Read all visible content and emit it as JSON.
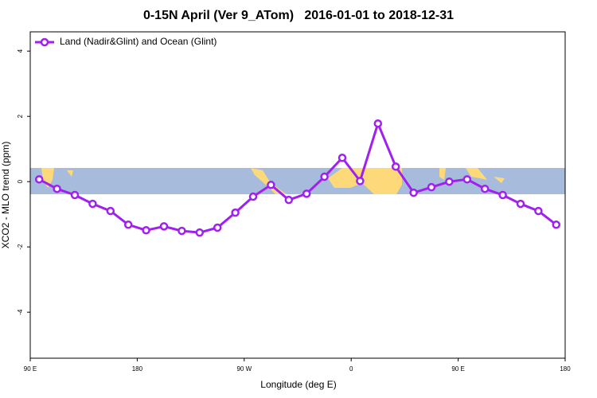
{
  "chart_data": {
    "type": "line",
    "title": "0-15N April (Ver 9_ATom)   2016-01-01 to 2018-12-31",
    "xlabel": "Longitude (deg E)",
    "ylabel": "XCO2 - MLO trend (ppm)",
    "x": [
      97.5,
      112.5,
      127.5,
      142.5,
      157.5,
      172.5,
      187.5,
      202.5,
      217.5,
      232.5,
      247.5,
      262.5,
      277.5,
      292.5,
      307.5,
      322.5,
      337.5,
      352.5,
      367.5,
      382.5,
      397.5,
      412.5,
      427.5,
      442.5,
      457.5,
      472.5,
      487.5,
      502.5,
      517.5,
      532.5
    ],
    "series": [
      {
        "name": "Land (Nadir&Glint) and Ocean (Glint)",
        "color": "#a020f0",
        "values": [
          0.07,
          -0.22,
          -0.41,
          -0.68,
          -0.9,
          -1.32,
          -1.49,
          -1.37,
          -1.51,
          -1.56,
          -1.41,
          -0.95,
          -0.46,
          -0.1,
          -0.56,
          -0.37,
          0.15,
          0.73,
          0.02,
          1.78,
          0.46,
          -0.34,
          -0.17,
          0.0,
          0.07,
          -0.22,
          -0.41,
          -0.68,
          -0.9,
          -1.32
        ]
      }
    ],
    "xlim": [
      90,
      540
    ],
    "xticks": [
      {
        "value": 90,
        "label": "90 E"
      },
      180,
      {
        "value": 270,
        "label": "90 W"
      },
      {
        "value": 360,
        "label": "0"
      },
      {
        "value": 450,
        "label": "90 E"
      },
      {
        "value": 540,
        "label": "180"
      }
    ],
    "ylim": [
      -5.41,
      4.59
    ],
    "yticks": [
      -4,
      -2,
      0,
      2,
      4
    ],
    "legend": "top-left"
  }
}
